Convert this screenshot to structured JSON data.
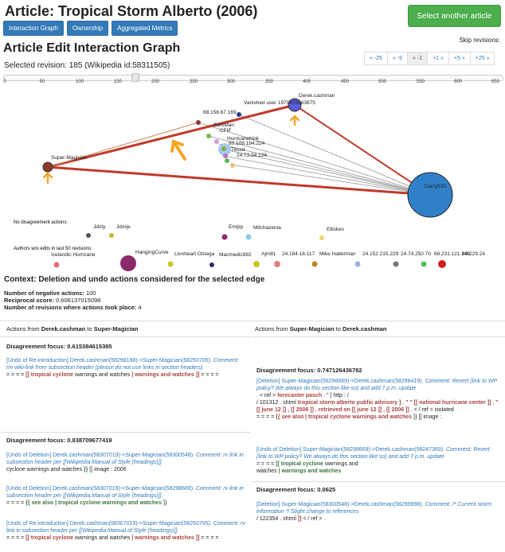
{
  "page": {
    "title": "Article: Tropical Storm Alberto (2006)",
    "select_button": "Select another article",
    "tabs": [
      "Interaction Graph",
      "Ownership",
      "Aggregated Metrics"
    ],
    "skip_label": "Skip revisions:",
    "heading": "Article Edit Interaction Graph",
    "selected_revision": "Selected revision: 185 (Wikipedia id:58311505)",
    "pager": [
      "« -25",
      "« -5",
      "« -1",
      "+1 »",
      "+5 »",
      "+25 »"
    ],
    "slider_value": 185
  },
  "axis_ticks": [
    "0",
    "50",
    "100",
    "150",
    "200",
    "250",
    "300",
    "350",
    "400",
    "450",
    "500",
    "550",
    "600",
    "650"
  ],
  "graph": {
    "nodes": [
      {
        "label": "Derek.cashman",
        "color": "#5b5bd6"
      },
      {
        "label": "Vanished user 1979475563875",
        "color": "#2a3a8a"
      },
      {
        "label": "68.158.67.169",
        "color": "#8b3a3a"
      },
      {
        "label": "BarkMan",
        "color": "#7ab648"
      },
      {
        "label": "CFIF",
        "color": "#c8a0d8"
      },
      {
        "label": "Hurricanehink",
        "color": "#7ab648"
      },
      {
        "label": "80.109.194.224",
        "color": "#aac8ec"
      },
      {
        "label": "Titoxd",
        "color": "#5bb85b"
      },
      {
        "label": "24.73.54.124",
        "color": "#f0c080"
      },
      {
        "label": "Super-Magician",
        "color": "#8b3a2a"
      },
      {
        "label": "Crazy533",
        "color": "#2f80c8"
      }
    ],
    "no_disagreement_label": "No disagreement actions:",
    "no_disagreement": [
      {
        "label": "Jdoty",
        "color": "#555555"
      },
      {
        "label": "Jdorje",
        "color": "#c8b830"
      },
      {
        "label": "Emijrp",
        "color": "#8b2a6a"
      },
      {
        "label": "Mitchazenia",
        "color": "#8ac8f0"
      },
      {
        "label": "Elliskev",
        "color": "#e8d870"
      }
    ],
    "authors_label": "Authors w/o edits in last 50 revisions:",
    "authors": [
      {
        "label": "Icelandic Hurricane",
        "color": "#e07070"
      },
      {
        "label": "HangingCurve",
        "color": "#8b2a6a"
      },
      {
        "label": "Lionheart Omega",
        "color": "#c8c820"
      },
      {
        "label": "Macmedic892",
        "color": "#2a2a6a"
      },
      {
        "label": "Ajm81",
        "color": "#c8c820"
      },
      {
        "label": "24.164.16.117",
        "color": "#e08080"
      },
      {
        "label": "Mike Halterman",
        "color": "#b8861b"
      },
      {
        "label": "24.152.215.229",
        "color": "#9ab0e0"
      },
      {
        "label": "24.74.250.70",
        "color": "#777777"
      },
      {
        "label": "68.231.121.248",
        "color": "#5bb85b"
      },
      {
        "label": "60.229.24",
        "color": "#d02020"
      }
    ]
  },
  "context": {
    "title": "Context: Deletion and undo actions considered for the selected edge",
    "stats": [
      {
        "k": "Number of negative actions:",
        "v": "100"
      },
      {
        "k": "Reciprocal score:",
        "v": "0.606137015098"
      },
      {
        "k": "Number of revisions where actions took place:",
        "v": "4"
      }
    ]
  },
  "left": {
    "hdr_pre": "Actions from ",
    "from": "Derek.cashman",
    "to_word": " to ",
    "to": "Super-Magician",
    "focus1": "Disagreement focus: 0.615384615385",
    "e1_link": "[Undo of Re-introduction] Derek.cashman(58298188)->Super-Magician(58250705).",
    "e1_comment": " Comment: rm wiki-link from subsection header (please do not use links in section headers).",
    "e1_pre": "= = = = ",
    "e1_red": "[[ tropical cyclone",
    "e1_mid": " warnings and watches ",
    "e1_red2": "| warnings and watches ]]",
    "e1_post": " = = = =",
    "focus2": "Disagreement focus: 0.838709677419",
    "e2_link": "[Undo of Deletion] Derek.cashman(58307019)->Super-Magician(58300548).",
    "e2_comment": " Comment: rv link in subsection header per [[Wikipedia:Manual of Style (headings)]].",
    "e2_text": "cyclone warnings and watches ",
    "e2_grn": "}}",
    "e2_post": " [[ image : 2006",
    "e3_link": "[Undo of Deletion] Derek.cashman(58307019)->Super-Magician(58298669).",
    "e3_comment": " Comment: rv link in subsection header per [[Wikipedia:Manual of Style (headings)]].",
    "e3_pre": "= = = = ",
    "e3_grn": "{{ see also | tropical cyclone warnings and watches",
    "e3_post": " }}",
    "e4_link": "[Undo of Re-introduction] Derek.cashman(58307019)->Super-Magician(58250705).",
    "e4_comment": " Comment: rv link in subsection header per [[Wikipedia:Manual of Style (headings)]].",
    "e4_pre": "= = = = ",
    "e4_red": "[[ tropical cyclone",
    "e4_mid": " warnings and watches ",
    "e4_red2": "| warnings and watches ]]",
    "e4_post": " = = = ="
  },
  "right": {
    "hdr_pre": "Actions from ",
    "from": "Super-Magician",
    "to_word": " to ",
    "to": "Derek.cashman",
    "focus1": "Disagreement focus: 0.747126436782",
    "e1_link": "[Deletion] Super-Magician(58298669)->Derek.cashman(58298419).",
    "e1_comment": " Comment: Revert (link to WP policy? We always do this section like so) and add 7 p.m. update",
    "e1_a": ". < ref > ",
    "e1_red1": "forecaster pasch",
    "e1_b": " . \" [ http : /",
    "e1_c": "/ 101312 . shtml ",
    "e1_red2": "tropical storm alberto public advisory ] . \" '' [[ national hurricane center ]] . '' [[ june 12 ]] , [[ 2006 ]] . retrieved on [[ june 12 ]] , [[ 2006 ]] .",
    "e1_d": " < / ref > isolated",
    "e1_e": "= = = = ",
    "e1_red3": "{{ see also | tropical cyclone warnings and watches",
    "e1_f": " }} [[ image :",
    "e2_link": "[Undo of Deletion] Super-Magician(58298669)->Derek.cashman(58247369).",
    "e2_comment": " Comment: Revert (link to WP policy? We always do this section like so) and add 7 p.m. update",
    "e2_pre": "= = = = ",
    "e2_grn": "[[ tropical cyclone",
    "e2_mid": " warnings and",
    "e2_text2": "watches ",
    "e2_grn2": "| warnings and watches",
    "focus2": "Disagreement focus: 0.0625",
    "e3_link": "[Deletion] Super-Magician(58300548)->Derek.cashman(58299898).",
    "e3_comment": " Comment: /* Current storm information */ Slight change to references",
    "e3_text": "/ 122354 . shtml ",
    "e3_red": "]]",
    "e3_post": " < / ref > ."
  }
}
